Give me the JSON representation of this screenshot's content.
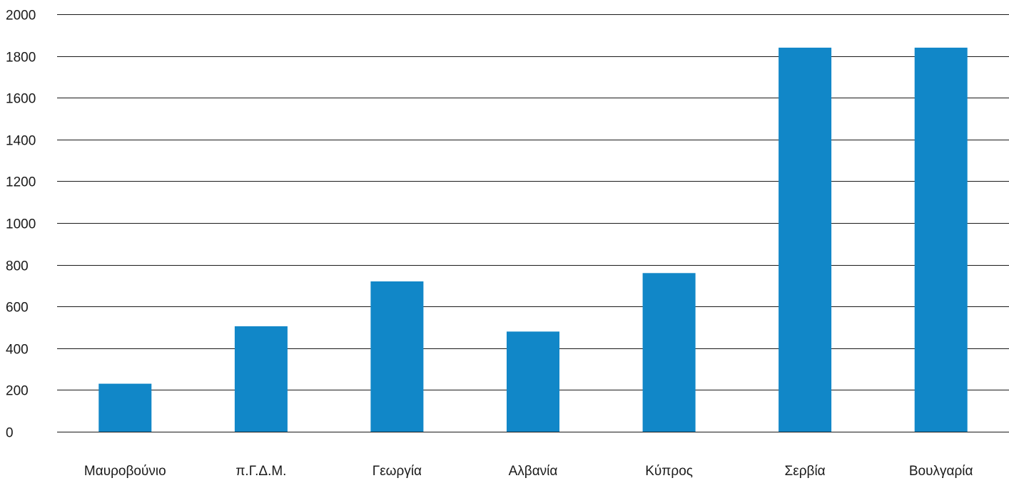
{
  "chart_data": {
    "type": "bar",
    "title": "",
    "xlabel": "",
    "ylabel": "",
    "ylim": [
      0,
      2000
    ],
    "yticks": [
      0,
      200,
      400,
      600,
      800,
      1000,
      1200,
      1400,
      1600,
      1800,
      2000
    ],
    "grid": true,
    "legend": "none",
    "bar_color": "#1187c8",
    "categories": [
      "Μαυροβούνιο",
      "π.Γ.Δ.Μ.",
      "Γεωργία",
      "Αλβανία",
      "Κύπρος",
      "Σερβία",
      "Βουλγαρία"
    ],
    "values": [
      230,
      505,
      720,
      480,
      760,
      1840,
      1840
    ]
  }
}
